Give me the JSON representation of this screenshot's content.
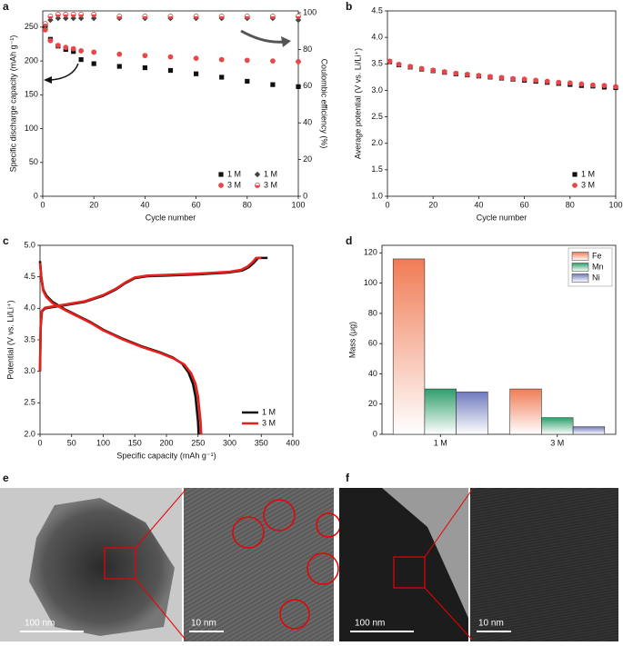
{
  "panel_labels": [
    "a",
    "b",
    "c",
    "d",
    "e",
    "f"
  ],
  "scale_bars": [
    "100 nm",
    "10 nm",
    "100 nm",
    "10 nm"
  ],
  "chart_data": [
    {
      "type": "scatter",
      "x_label": "Cycle number",
      "y_label": "Specific discharge capacity (mAh g⁻¹)",
      "y2_label": "Coulombic efficiency (%)",
      "x": [
        1,
        3,
        6,
        9,
        12,
        15,
        20,
        30,
        40,
        50,
        60,
        70,
        80,
        90,
        100
      ],
      "series": [
        {
          "name": "1 M",
          "color": "#111111",
          "marker": "square",
          "values": [
            248,
            232,
            222,
            217,
            214,
            202,
            196,
            192,
            190,
            186,
            181,
            176,
            170,
            165,
            162
          ]
        },
        {
          "name": "1 M",
          "color": "#444444",
          "marker": "diamond",
          "axis": "y2",
          "values": [
            93,
            96,
            97,
            97,
            97,
            97,
            97,
            97,
            97,
            97,
            97,
            97,
            97,
            97,
            96
          ]
        },
        {
          "name": "3 M",
          "color": "#e8474a",
          "marker": "circle",
          "values": [
            246,
            230,
            223,
            220,
            218,
            215,
            213,
            210,
            208,
            206,
            204,
            202,
            201,
            200,
            199
          ]
        },
        {
          "name": "3 M",
          "color": "#e8474a",
          "marker": "half-circle",
          "axis": "y2",
          "values": [
            94,
            98,
            99,
            99,
            99,
            99,
            99,
            98,
            98,
            98,
            98,
            98,
            98,
            98,
            98
          ]
        }
      ],
      "xlim": [
        0,
        100
      ],
      "xticks": [
        0,
        20,
        40,
        60,
        80,
        100
      ],
      "ylim": [
        0,
        274
      ],
      "yticks": [
        0,
        50,
        100,
        150,
        200,
        250
      ],
      "y2lim": [
        0,
        101
      ],
      "y2ticks": [
        0,
        20,
        40,
        60,
        80,
        100
      ],
      "legend": "lower right"
    },
    {
      "type": "scatter",
      "x_label": "Cycle number",
      "y_label": "Average potential (V vs. Li/Li⁺)",
      "x": [
        1,
        5,
        10,
        15,
        20,
        25,
        30,
        35,
        40,
        45,
        50,
        55,
        60,
        65,
        70,
        75,
        80,
        85,
        90,
        95,
        100
      ],
      "series": [
        {
          "name": "1 M",
          "color": "#111111",
          "marker": "square",
          "values": [
            3.54,
            3.48,
            3.44,
            3.4,
            3.37,
            3.34,
            3.31,
            3.29,
            3.27,
            3.25,
            3.23,
            3.21,
            3.19,
            3.17,
            3.15,
            3.13,
            3.11,
            3.09,
            3.08,
            3.06,
            3.05
          ]
        },
        {
          "name": "3 M",
          "color": "#e8474a",
          "marker": "circle",
          "values": [
            3.55,
            3.49,
            3.45,
            3.41,
            3.38,
            3.35,
            3.32,
            3.3,
            3.28,
            3.26,
            3.24,
            3.22,
            3.21,
            3.19,
            3.17,
            3.15,
            3.14,
            3.12,
            3.1,
            3.09,
            3.07
          ]
        }
      ],
      "xlim": [
        0,
        100
      ],
      "xticks": [
        0,
        20,
        40,
        60,
        80,
        100
      ],
      "ylim": [
        1,
        4.5
      ],
      "yticks": [
        {
          "value": 1,
          "label": "1.0"
        },
        1.5,
        {
          "value": 2,
          "label": "2.0"
        },
        2.5,
        {
          "value": 3,
          "label": "3.0"
        },
        3.5,
        {
          "value": 4,
          "label": "4.0"
        },
        4.5
      ],
      "legend": "lower right"
    },
    {
      "type": "line",
      "x_label": "Specific capacity (mAh g⁻¹)",
      "y_label": "Potential (V vs. Li/Li⁺)",
      "series": [
        {
          "name": "1 M",
          "color": "#111111",
          "x": [
            0,
            2,
            5,
            10,
            20,
            40,
            60,
            80,
            100,
            130,
            160,
            190,
            210,
            225,
            235,
            242,
            246,
            248,
            250,
            251,
            null,
            0,
            1,
            3,
            8,
            20,
            40,
            70,
            100,
            120,
            135,
            150,
            170,
            200,
            250,
            300,
            320,
            330,
            338,
            345,
            360
          ],
          "values": [
            4.75,
            4.5,
            4.3,
            4.2,
            4.1,
            3.98,
            3.88,
            3.78,
            3.66,
            3.52,
            3.4,
            3.3,
            3.22,
            3.12,
            2.98,
            2.8,
            2.6,
            2.4,
            2.2,
            2,
            null,
            3,
            3.7,
            3.95,
            4,
            4.02,
            4.05,
            4.1,
            4.2,
            4.3,
            4.4,
            4.48,
            4.51,
            4.52,
            4.54,
            4.57,
            4.6,
            4.65,
            4.72,
            4.8,
            4.8
          ]
        },
        {
          "name": "3 M",
          "color": "#e8201c",
          "x": [
            0,
            2,
            5,
            10,
            20,
            40,
            60,
            80,
            100,
            130,
            160,
            190,
            210,
            228,
            239,
            246,
            250,
            252,
            254,
            255,
            null,
            0,
            1,
            3,
            8,
            20,
            40,
            70,
            100,
            120,
            135,
            150,
            170,
            200,
            250,
            300,
            318,
            328,
            336,
            342,
            350
          ],
          "values": [
            4.72,
            4.48,
            4.28,
            4.18,
            4.08,
            3.97,
            3.87,
            3.77,
            3.65,
            3.51,
            3.39,
            3.29,
            3.21,
            3.11,
            2.97,
            2.8,
            2.6,
            2.4,
            2.2,
            2,
            null,
            3,
            3.72,
            3.96,
            4.01,
            4.03,
            4.06,
            4.11,
            4.21,
            4.31,
            4.41,
            4.49,
            4.52,
            4.53,
            4.55,
            4.58,
            4.61,
            4.66,
            4.73,
            4.8,
            4.8
          ]
        }
      ],
      "xlim": [
        0,
        400
      ],
      "xticks": [
        0,
        50,
        100,
        150,
        200,
        250,
        300,
        350,
        400
      ],
      "ylim": [
        2,
        5
      ],
      "yticks": [
        {
          "value": 2,
          "label": "2.0"
        },
        2.5,
        {
          "value": 3,
          "label": "3.0"
        },
        3.5,
        {
          "value": 4,
          "label": "4.0"
        },
        4.5,
        {
          "value": 5,
          "label": "5.0"
        }
      ],
      "legend": "lower right"
    },
    {
      "type": "bar",
      "y_label": "Mass (μg)",
      "categories": [
        "1 M",
        "3 M"
      ],
      "series": [
        {
          "name": "Fe",
          "color": "#f07c55",
          "values": [
            116,
            30
          ]
        },
        {
          "name": "Mn",
          "color": "#2e9e6c",
          "values": [
            30,
            11
          ]
        },
        {
          "name": "Ni",
          "color": "#6f7bbd",
          "values": [
            28,
            5
          ]
        }
      ],
      "ylim": [
        0,
        125
      ],
      "yticks": [
        0,
        20,
        40,
        60,
        80,
        100,
        120
      ],
      "legend": "upper right"
    }
  ]
}
